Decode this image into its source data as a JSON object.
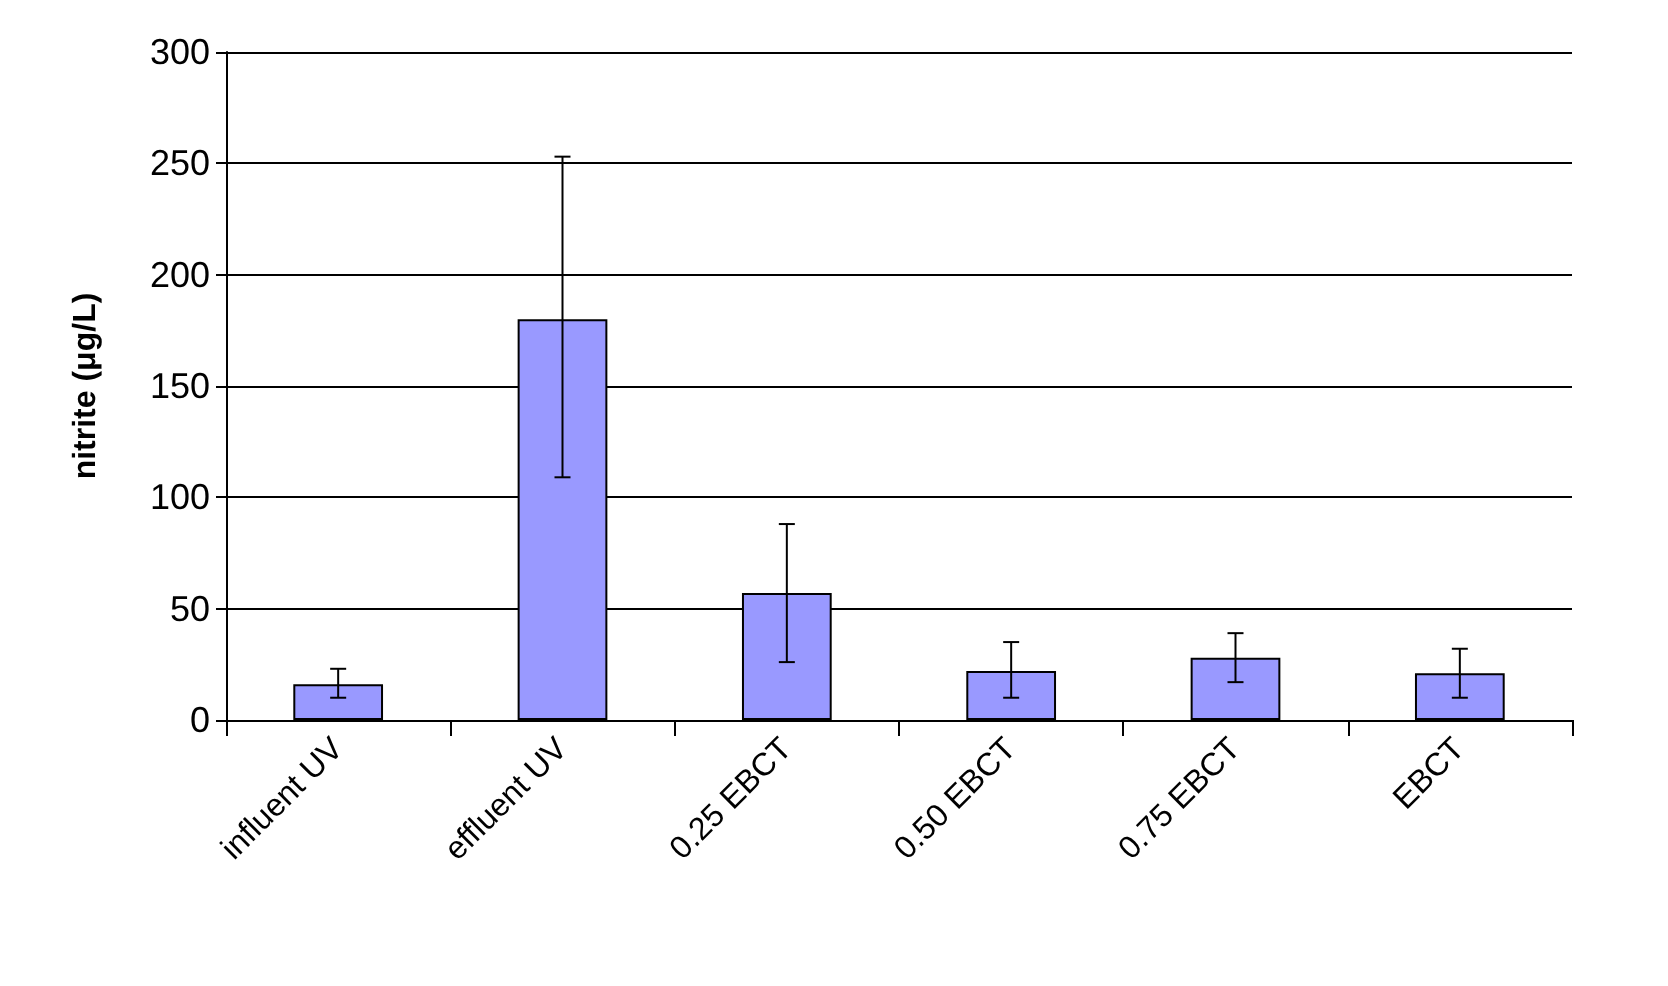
{
  "chart_data": {
    "type": "bar",
    "ylabel": "nitrite (μg/L)",
    "categories": [
      "influent UV",
      "effluent UV",
      "0.25 EBCT",
      "0.50 EBCT",
      "0.75 EBCT",
      "EBCT"
    ],
    "values": [
      16,
      180,
      57,
      22,
      28,
      21
    ],
    "errors": [
      [
        10,
        23
      ],
      [
        109,
        253
      ],
      [
        26,
        88
      ],
      [
        10,
        35
      ],
      [
        17,
        39
      ],
      [
        10,
        32
      ]
    ],
    "color": "#9999ff",
    "ylim": [
      0,
      300
    ],
    "yticks": [
      0,
      50,
      100,
      150,
      200,
      250,
      300
    ],
    "grid": "y"
  }
}
